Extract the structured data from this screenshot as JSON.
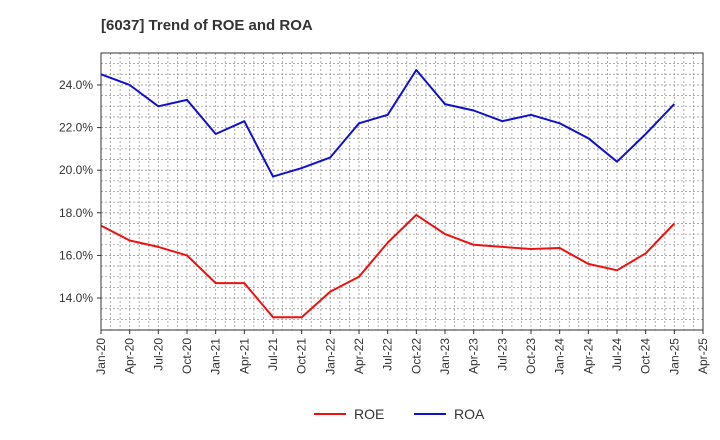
{
  "chart_data": {
    "type": "line",
    "title": "[6037]  Trend of ROE and ROA",
    "xlabel": "",
    "ylabel": "",
    "x": [
      "Jan-20",
      "Apr-20",
      "Jul-20",
      "Oct-20",
      "Jan-21",
      "Apr-21",
      "Jul-21",
      "Oct-21",
      "Jan-22",
      "Apr-22",
      "Jul-22",
      "Oct-22",
      "Jan-23",
      "Apr-23",
      "Jul-23",
      "Oct-23",
      "Jan-24",
      "Apr-24",
      "Jul-24",
      "Oct-24",
      "Jan-25"
    ],
    "x_ticks": [
      "Jan-20",
      "Apr-20",
      "Jul-20",
      "Oct-20",
      "Jan-21",
      "Apr-21",
      "Jul-21",
      "Oct-21",
      "Jan-22",
      "Apr-22",
      "Jul-22",
      "Oct-22",
      "Jan-23",
      "Apr-23",
      "Jul-23",
      "Oct-23",
      "Jan-24",
      "Apr-24",
      "Jul-24",
      "Oct-24",
      "Jan-25",
      "Apr-25"
    ],
    "y_ticks": [
      "14.0%",
      "16.0%",
      "18.0%",
      "20.0%",
      "22.0%",
      "24.0%"
    ],
    "y_tick_values": [
      14,
      16,
      18,
      20,
      22,
      24
    ],
    "ylim": [
      12.5,
      25.5
    ],
    "grid": true,
    "legend_position": "bottom",
    "series": [
      {
        "name": "ROE",
        "color": "#ee1111",
        "values": [
          17.4,
          16.7,
          16.4,
          16.0,
          14.7,
          14.7,
          13.1,
          13.1,
          14.3,
          15.0,
          16.6,
          17.9,
          17.0,
          16.5,
          16.4,
          16.3,
          16.35,
          15.6,
          15.3,
          16.1,
          17.5
        ]
      },
      {
        "name": "ROA",
        "color": "#1111cc",
        "values": [
          24.5,
          24.0,
          23.0,
          23.3,
          21.7,
          22.3,
          19.7,
          20.1,
          20.6,
          22.2,
          22.6,
          24.7,
          23.1,
          22.8,
          22.3,
          22.6,
          22.2,
          21.5,
          20.4,
          21.7,
          23.1
        ]
      }
    ]
  }
}
